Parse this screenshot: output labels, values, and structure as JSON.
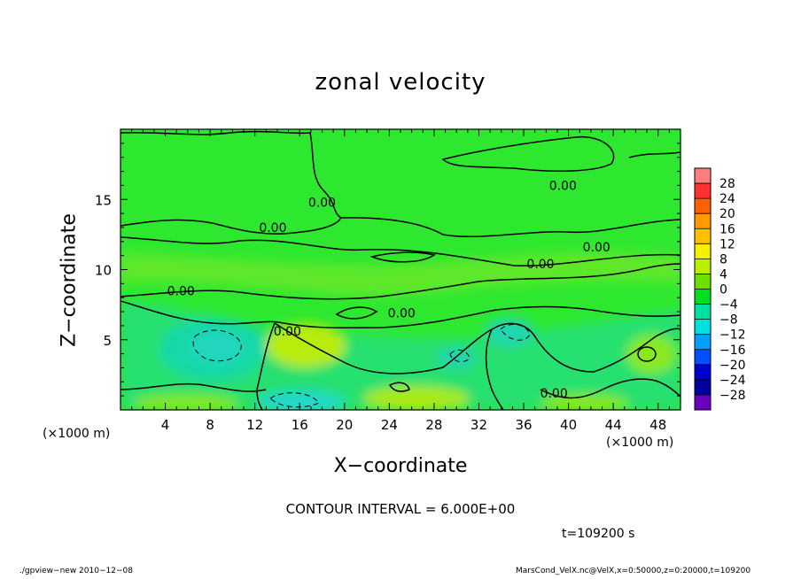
{
  "chart_data": {
    "type": "heatmap",
    "title": "zonal velocity",
    "xlabel": "X−coordinate",
    "ylabel": "Z−coordinate",
    "x_unit_label": "(×1000 m)",
    "xlim": [
      0,
      50
    ],
    "ylim": [
      0,
      20
    ],
    "x_ticks": [
      4,
      8,
      12,
      16,
      20,
      24,
      28,
      32,
      36,
      40,
      44,
      48
    ],
    "y_ticks": [
      5,
      10,
      15
    ],
    "contour_labels": [
      {
        "text": "0.00",
        "x": 13.6,
        "y": 13.0
      },
      {
        "text": "0.00",
        "x": 5.4,
        "y": 8.5
      },
      {
        "text": "0.00",
        "x": 14.9,
        "y": 5.6
      },
      {
        "text": "0.00",
        "x": 18.0,
        "y": 14.8
      },
      {
        "text": "0.00",
        "x": 25.1,
        "y": 6.9
      },
      {
        "text": "0.00",
        "x": 37.5,
        "y": 10.4
      },
      {
        "text": "0.00",
        "x": 39.5,
        "y": 16.0
      },
      {
        "text": "0.00",
        "x": 42.5,
        "y": 11.6
      },
      {
        "text": "0.00",
        "x": 38.7,
        "y": 1.2
      }
    ],
    "colorbar": {
      "levels": [
        "28",
        "24",
        "20",
        "16",
        "12",
        "8",
        "4",
        "0",
        "−4",
        "−8",
        "−12",
        "−16",
        "−20",
        "−24",
        "−28"
      ],
      "colors": [
        "#ff7f7f",
        "#ff3030",
        "#ff6000",
        "#ff9a00",
        "#ffc000",
        "#f2f200",
        "#b8f000",
        "#6ee000",
        "#00e020",
        "#00e0a0",
        "#00e0e0",
        "#00a0ff",
        "#0050ff",
        "#0000d0",
        "#0000a0",
        "#6a00c0"
      ]
    },
    "field_description_values": {
      "background": 0,
      "max_approx": 8,
      "min_approx": -10
    }
  },
  "contour_interval_text": "CONTOUR INTERVAL = 6.000E+00",
  "time_text": "t=109200 s",
  "footer_left": "./gpview−new  2010−12−08",
  "footer_right": "MarsCond_VelX.nc@VelX,x=0:50000,z=0:20000,t=109200"
}
